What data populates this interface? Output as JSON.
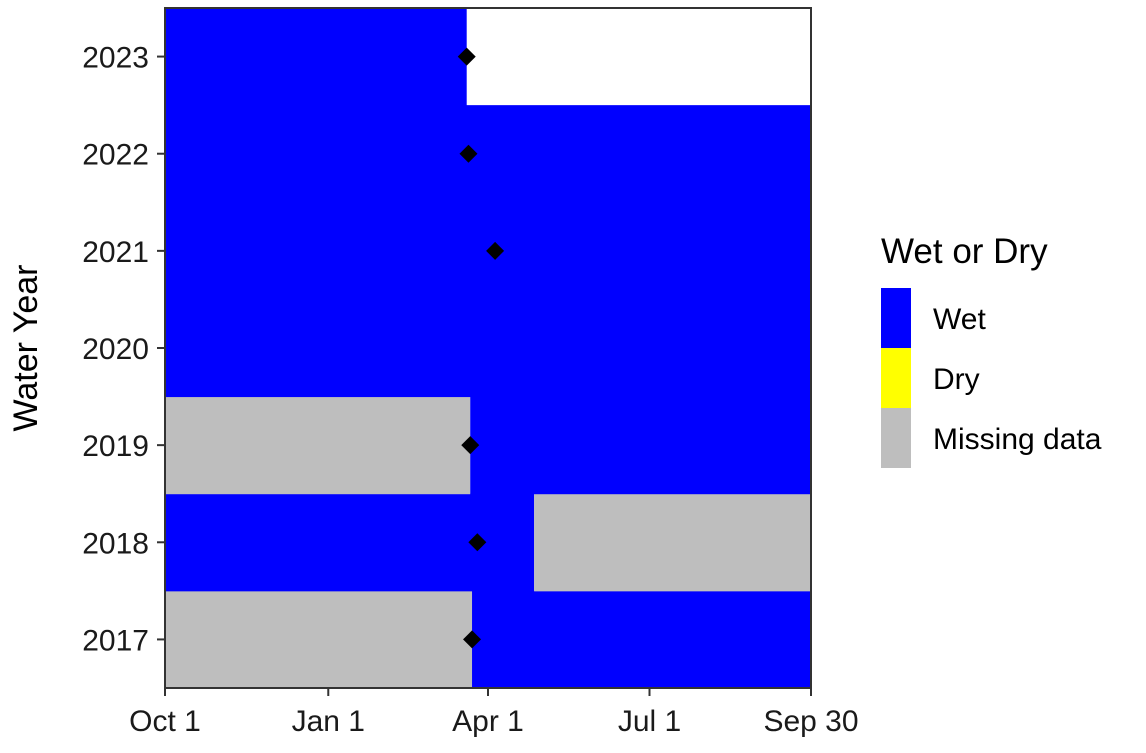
{
  "chart_data": {
    "type": "heatmap",
    "ylabel": "Water Year",
    "xlabel": "",
    "x_axis": {
      "unit": "day of water year",
      "range": [
        1,
        365
      ],
      "ticks": [
        {
          "label": "Oct 1",
          "day": 1
        },
        {
          "label": "Jan 1",
          "day": 93
        },
        {
          "label": "Apr 1",
          "day": 183
        },
        {
          "label": "Jul 1",
          "day": 274
        },
        {
          "label": "Sep 30",
          "day": 365
        }
      ]
    },
    "years": [
      "2017",
      "2018",
      "2019",
      "2020",
      "2021",
      "2022",
      "2023"
    ],
    "legend": {
      "title": "Wet or Dry",
      "position": "right",
      "items": [
        {
          "key": "wet",
          "label": "Wet",
          "color": "#0000ff"
        },
        {
          "key": "dry",
          "label": "Dry",
          "color": "#ffff00"
        },
        {
          "key": "missing",
          "label": "Missing data",
          "color": "#bebebe"
        }
      ]
    },
    "segments": [
      {
        "year": "2017",
        "status": "missing",
        "start_day": 1,
        "end_day": 174
      },
      {
        "year": "2017",
        "status": "wet",
        "start_day": 174,
        "end_day": 365
      },
      {
        "year": "2018",
        "status": "wet",
        "start_day": 1,
        "end_day": 209
      },
      {
        "year": "2018",
        "status": "missing",
        "start_day": 209,
        "end_day": 365
      },
      {
        "year": "2019",
        "status": "missing",
        "start_day": 1,
        "end_day": 173
      },
      {
        "year": "2019",
        "status": "wet",
        "start_day": 173,
        "end_day": 365
      },
      {
        "year": "2020",
        "status": "wet",
        "start_day": 1,
        "end_day": 365
      },
      {
        "year": "2021",
        "status": "wet",
        "start_day": 1,
        "end_day": 365
      },
      {
        "year": "2022",
        "status": "wet",
        "start_day": 1,
        "end_day": 365
      },
      {
        "year": "2023",
        "status": "wet",
        "start_day": 1,
        "end_day": 171
      }
    ],
    "markers": {
      "shape": "diamond",
      "color": "#000000",
      "points": [
        {
          "year": "2017",
          "day": 174
        },
        {
          "year": "2018",
          "day": 177
        },
        {
          "year": "2019",
          "day": 173
        },
        {
          "year": "2020",
          "day": null
        },
        {
          "year": "2021",
          "day": 187
        },
        {
          "year": "2022",
          "day": 172
        },
        {
          "year": "2023",
          "day": 171
        }
      ]
    },
    "grid": false
  }
}
